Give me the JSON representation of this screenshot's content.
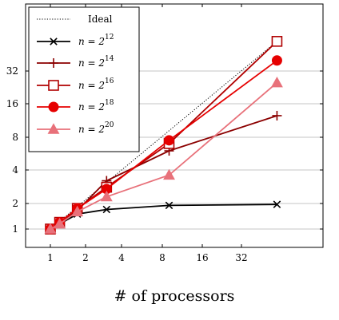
{
  "chart_data": {
    "type": "line",
    "title": "",
    "xlabel": "# of processors",
    "ylabel": "",
    "xscale": "log2",
    "yscale": "log2",
    "xlim": [
      0.7,
      128
    ],
    "ylim": [
      0.7,
      128
    ],
    "x_ticks": [
      1,
      2,
      4,
      8,
      16,
      32
    ],
    "x_tick_labels": [
      "1",
      "2",
      "4",
      "8",
      "16",
      "32"
    ],
    "y_ticks": [
      1,
      2,
      4,
      8,
      16,
      32
    ],
    "y_tick_labels": [
      "1",
      "2",
      "4",
      "8",
      "16",
      "32"
    ],
    "grid": "horizontal",
    "legend_position": "top-left",
    "series": [
      {
        "name": "Ideal",
        "style": "dotted",
        "marker": "none",
        "color": "#000000",
        "points": [
          [
            1,
            1
          ],
          [
            64,
            64
          ]
        ]
      },
      {
        "name": "n = 2^12",
        "base": "n = 2",
        "exp": "12",
        "marker": "x",
        "color": "#000000",
        "points": [
          [
            1,
            1.0
          ],
          [
            1.2,
            1.15
          ],
          [
            1.7,
            1.5
          ],
          [
            3,
            1.7
          ],
          [
            9,
            1.9
          ],
          [
            60,
            1.95
          ]
        ]
      },
      {
        "name": "n = 2^14",
        "base": "n = 2",
        "exp": "14",
        "marker": "plus",
        "color": "#8b0000",
        "points": [
          [
            1,
            1.0
          ],
          [
            1.2,
            1.2
          ],
          [
            1.7,
            1.65
          ],
          [
            3,
            3.2
          ],
          [
            9,
            6.0
          ],
          [
            60,
            12.5
          ]
        ]
      },
      {
        "name": "n = 2^16",
        "base": "n = 2",
        "exp": "16",
        "marker": "square-open",
        "color": "#b00000",
        "points": [
          [
            1,
            1.0
          ],
          [
            1.2,
            1.2
          ],
          [
            1.7,
            1.75
          ],
          [
            3,
            2.8
          ],
          [
            9,
            7.0
          ],
          [
            60,
            60
          ]
        ]
      },
      {
        "name": "n = 2^18",
        "base": "n = 2",
        "exp": "18",
        "marker": "circle",
        "color": "#e60000",
        "points": [
          [
            1,
            1.0
          ],
          [
            1.2,
            1.2
          ],
          [
            1.7,
            1.75
          ],
          [
            3,
            2.7
          ],
          [
            9,
            7.5
          ],
          [
            60,
            40
          ]
        ]
      },
      {
        "name": "n = 2^20",
        "base": "n = 2",
        "exp": "20",
        "marker": "triangle",
        "color": "#e8717a",
        "points": [
          [
            1,
            1.0
          ],
          [
            1.2,
            1.15
          ],
          [
            1.7,
            1.6
          ],
          [
            3,
            2.3
          ],
          [
            9,
            3.6
          ],
          [
            60,
            25
          ]
        ]
      }
    ]
  }
}
